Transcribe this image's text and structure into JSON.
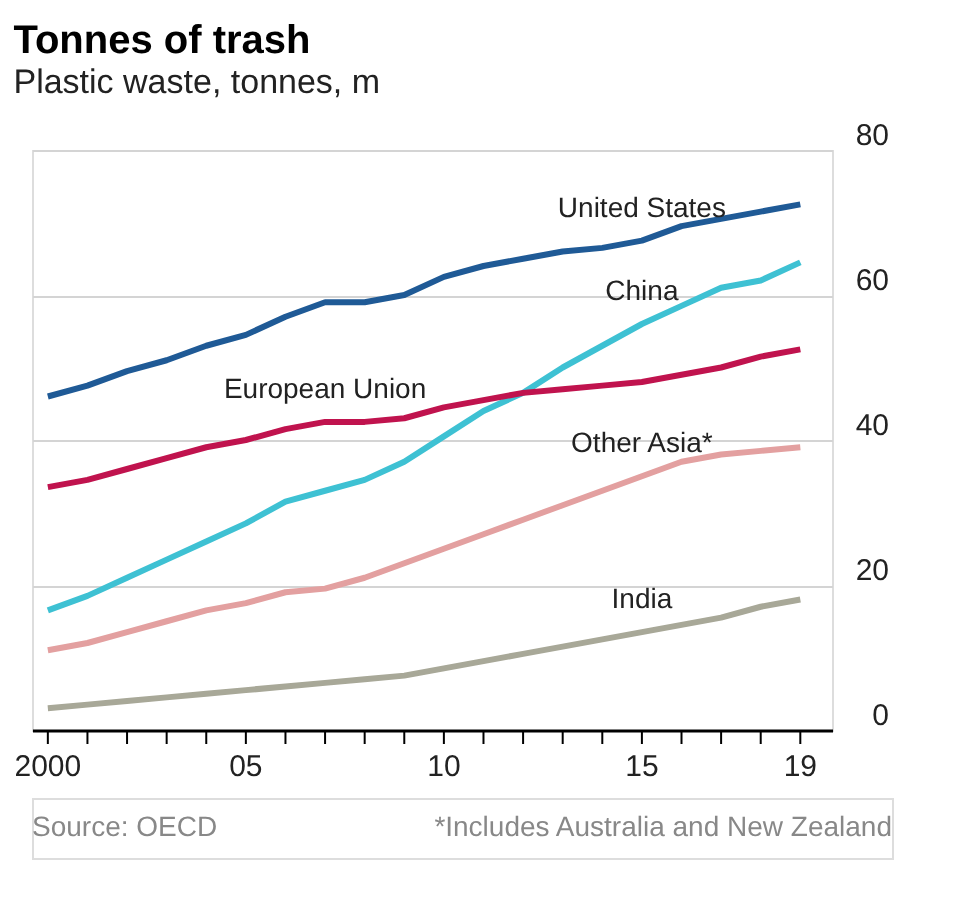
{
  "chart_data": {
    "type": "line",
    "title": "Tonnes of trash",
    "subtitle": "Plastic waste, tonnes, m",
    "x": [
      2000,
      2001,
      2002,
      2003,
      2004,
      2005,
      2006,
      2007,
      2008,
      2009,
      2010,
      2011,
      2012,
      2013,
      2014,
      2015,
      2016,
      2017,
      2018,
      2019
    ],
    "series": [
      {
        "name": "United States",
        "color": "#1f5a96",
        "values": [
          46,
          47.5,
          49.5,
          51,
          53,
          54.5,
          57,
          59,
          59,
          60,
          62.5,
          64,
          65,
          66,
          66.5,
          67.5,
          69.5,
          70.5,
          71.5,
          72.5
        ]
      },
      {
        "name": "China",
        "color": "#3ec1d3",
        "values": [
          16.5,
          18.5,
          21,
          23.5,
          26,
          28.5,
          31.5,
          33,
          34.5,
          37,
          40.5,
          44,
          46.5,
          50,
          53,
          56,
          58.5,
          61,
          62,
          64.5
        ]
      },
      {
        "name": "European Union",
        "color": "#c0134e",
        "values": [
          33.5,
          34.5,
          36,
          37.5,
          39,
          40,
          41.5,
          42.5,
          42.5,
          43,
          44.5,
          45.5,
          46.5,
          47,
          47.5,
          48,
          49,
          50,
          51.5,
          52.5
        ]
      },
      {
        "name": "Other Asia*",
        "color": "#e3a0a0",
        "values": [
          11,
          12,
          13.5,
          15,
          16.5,
          17.5,
          19,
          19.5,
          21,
          23,
          25,
          27,
          29,
          31,
          33,
          35,
          37,
          38,
          38.5,
          39
        ]
      },
      {
        "name": "India",
        "color": "#a8a898",
        "values": [
          3,
          3.5,
          4,
          4.5,
          5,
          5.5,
          6,
          6.5,
          7,
          7.5,
          8.5,
          9.5,
          10.5,
          11.5,
          12.5,
          13.5,
          14.5,
          15.5,
          17,
          18
        ]
      }
    ],
    "xlim": [
      1999.6,
      2019.8
    ],
    "xticks": [
      {
        "value": 2000,
        "label": "2000"
      },
      {
        "value": 2001,
        "label": null
      },
      {
        "value": 2002,
        "label": null
      },
      {
        "value": 2003,
        "label": null
      },
      {
        "value": 2004,
        "label": null
      },
      {
        "value": 2005,
        "label": "05"
      },
      {
        "value": 2006,
        "label": null
      },
      {
        "value": 2007,
        "label": null
      },
      {
        "value": 2008,
        "label": null
      },
      {
        "value": 2009,
        "label": null
      },
      {
        "value": 2010,
        "label": "10"
      },
      {
        "value": 2011,
        "label": null
      },
      {
        "value": 2012,
        "label": null
      },
      {
        "value": 2013,
        "label": null
      },
      {
        "value": 2014,
        "label": null
      },
      {
        "value": 2015,
        "label": "15"
      },
      {
        "value": 2016,
        "label": null
      },
      {
        "value": 2017,
        "label": null
      },
      {
        "value": 2018,
        "label": null
      },
      {
        "value": 2019,
        "label": "19"
      }
    ],
    "ylim": [
      0,
      80
    ],
    "yticks": [
      0,
      20,
      40,
      60,
      80
    ],
    "grid": "y",
    "legend": false,
    "line_style": "solid",
    "marker": "none",
    "annotations": [
      "Source: OECD",
      "*Includes Australia and New Zealand"
    ]
  }
}
